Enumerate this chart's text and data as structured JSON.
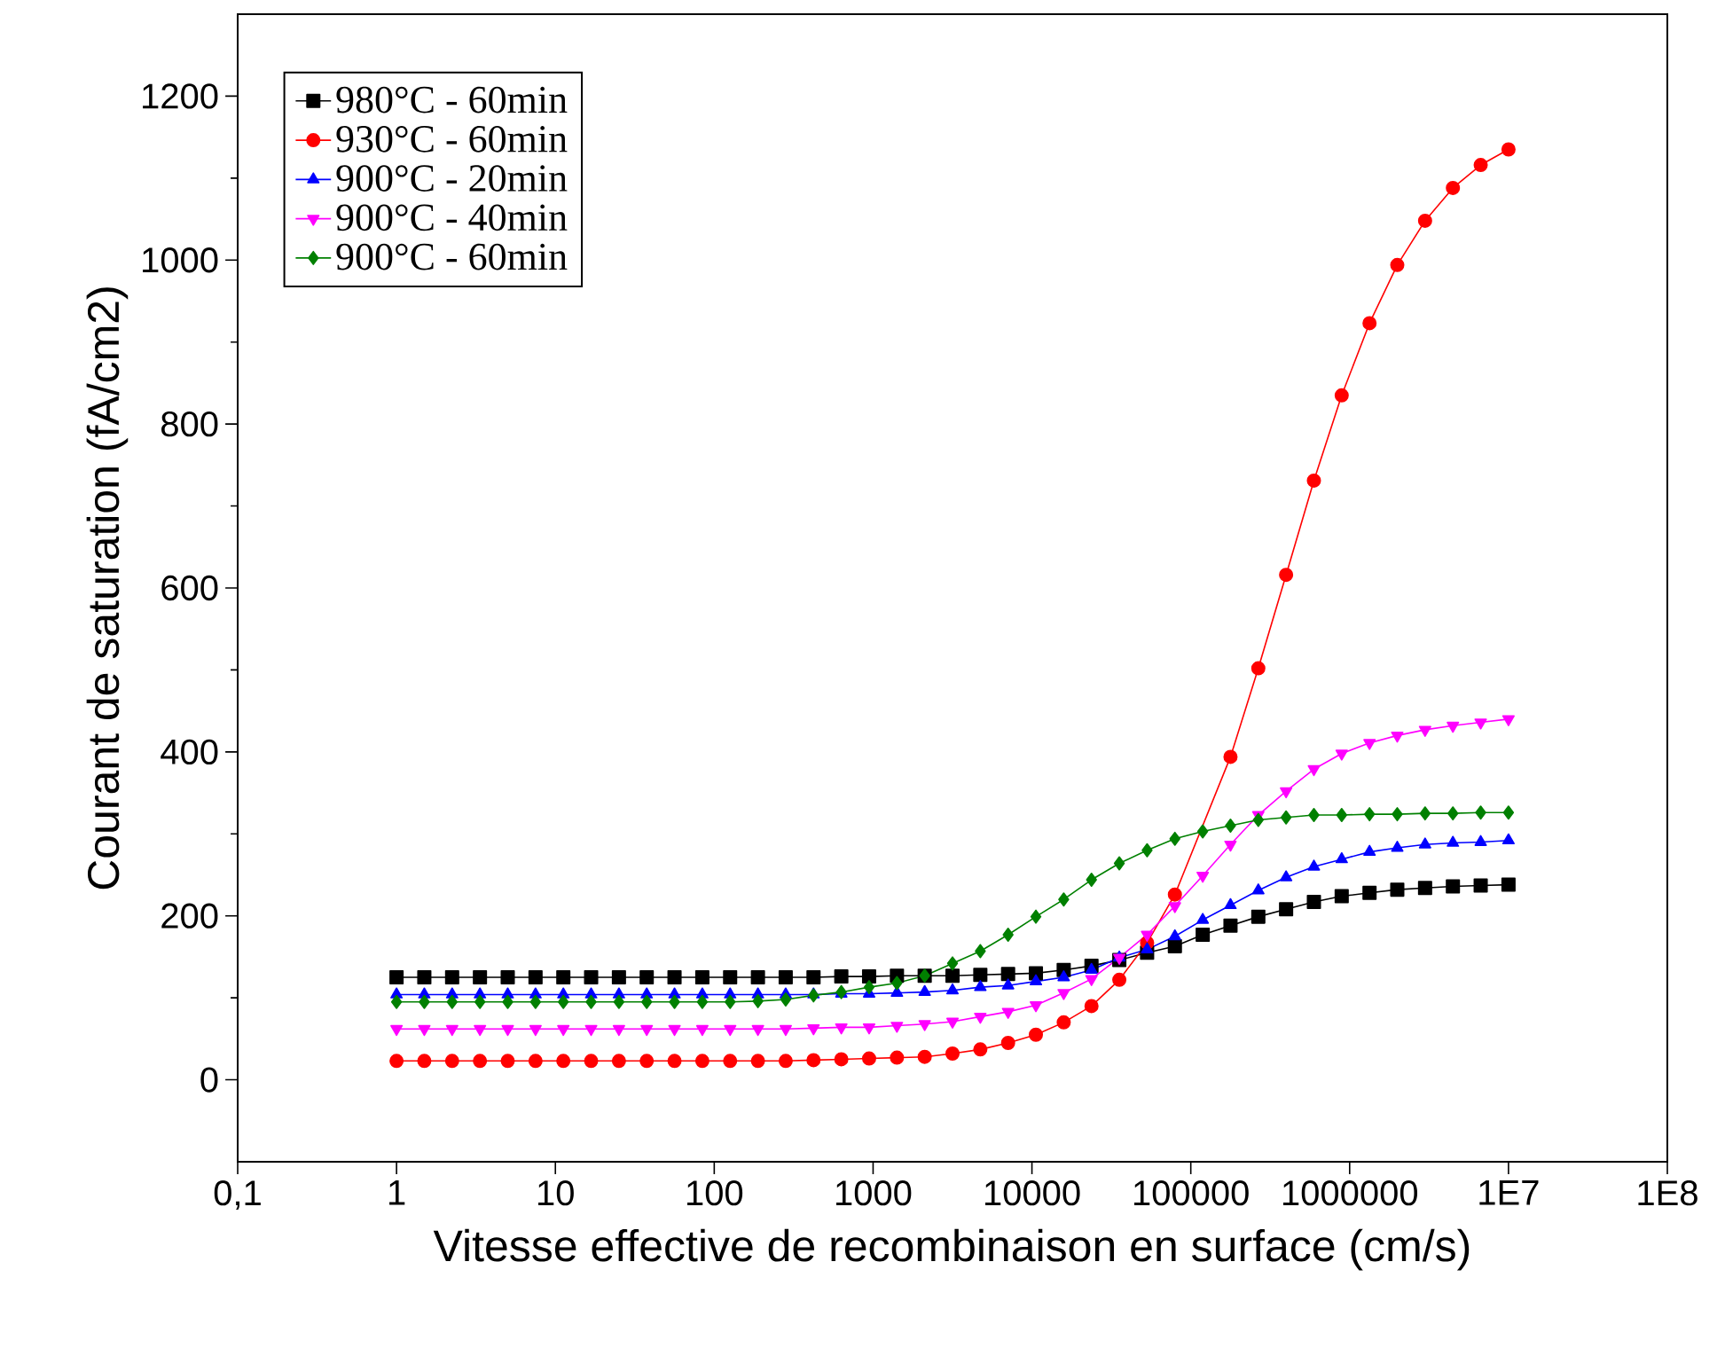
{
  "chart_data": {
    "type": "line",
    "xlabel": "Vitesse effective de recombinaison en surface (cm/s)",
    "ylabel": "Courant de saturation (fA/cm2)",
    "log": "x",
    "legend": "top left",
    "grid": false,
    "line_style": "solid",
    "xlim": [
      0.1,
      100000000
    ],
    "ylim": [
      -100,
      1300
    ],
    "xticks": [
      {
        "value": 0.1,
        "label": "0,1"
      },
      1,
      10,
      100,
      1000,
      10000,
      100000,
      1000000,
      {
        "value": 10000000,
        "label": "1E7"
      },
      {
        "value": 100000000,
        "label": "1E8"
      }
    ],
    "yticks": [
      0,
      200,
      400,
      600,
      800,
      1000,
      1200
    ],
    "x": [
      1,
      1.496,
      2.239,
      3.35,
      5.012,
      7.499,
      11.22,
      16.79,
      25.12,
      37.58,
      56.23,
      84.14,
      125.9,
      188.4,
      281.8,
      421.7,
      631.0,
      944.1,
      1413,
      2113,
      3162,
      4732,
      7079,
      10590,
      15850,
      23710,
      35480,
      53090,
      79430,
      118900,
      177800,
      266100,
      398100,
      595700,
      891300,
      1334000,
      1995000,
      2985000,
      4467000,
      6683000,
      10000000
    ],
    "series": [
      {
        "name": "980°C - 60min",
        "color": "#000000",
        "marker": "square",
        "values": [
          125,
          125,
          125,
          125,
          125,
          125,
          125,
          125,
          125,
          125,
          125,
          125,
          125,
          125,
          125,
          125,
          126,
          126,
          127,
          127,
          127,
          128,
          129,
          130,
          134,
          139,
          146,
          155,
          163,
          177,
          188,
          199,
          208,
          217,
          224,
          228,
          232,
          234,
          236,
          237,
          238
        ]
      },
      {
        "name": "930°C - 60min",
        "color": "#ff0000",
        "marker": "circle",
        "values": [
          23,
          23,
          23,
          23,
          23,
          23,
          23,
          23,
          23,
          23,
          23,
          23,
          23,
          23,
          23,
          24,
          25,
          26,
          27,
          28,
          32,
          37,
          45,
          55,
          70,
          90,
          122,
          167,
          226,
          null,
          394,
          502,
          616,
          731,
          835,
          923,
          994,
          1048,
          1088,
          1116,
          1135
        ]
      },
      {
        "name": "900°C - 20min",
        "color": "#0000ff",
        "marker": "triangle",
        "values": [
          104,
          104,
          104,
          104,
          104,
          104,
          104,
          104,
          104,
          104,
          104,
          104,
          104,
          104,
          104,
          104,
          105,
          105,
          106,
          107,
          109,
          113,
          115,
          120,
          125,
          134,
          149,
          159,
          175,
          195,
          213,
          231,
          247,
          260,
          269,
          278,
          283,
          287,
          289,
          290,
          292
        ]
      },
      {
        "name": "900°C - 40min",
        "color": "#ff00ff",
        "marker": "triangle_down",
        "values": [
          62,
          62,
          62,
          62,
          62,
          62,
          62,
          62,
          62,
          62,
          62,
          62,
          62,
          62,
          62,
          63,
          64,
          64,
          66,
          68,
          71,
          77,
          83,
          91,
          106,
          123,
          149,
          177,
          212,
          249,
          287,
          323,
          352,
          379,
          398,
          411,
          420,
          427,
          432,
          436,
          440
        ]
      },
      {
        "name": "900°C - 60min",
        "color": "#008000",
        "marker": "diamond",
        "values": [
          95,
          95,
          95,
          95,
          95,
          95,
          95,
          95,
          95,
          95,
          95,
          95,
          95,
          96,
          98,
          103,
          107,
          113,
          118,
          127,
          142,
          157,
          177,
          199,
          220,
          244,
          264,
          280,
          294,
          303,
          310,
          317,
          320,
          323,
          323,
          324,
          324,
          325,
          325,
          326,
          326
        ]
      }
    ]
  }
}
